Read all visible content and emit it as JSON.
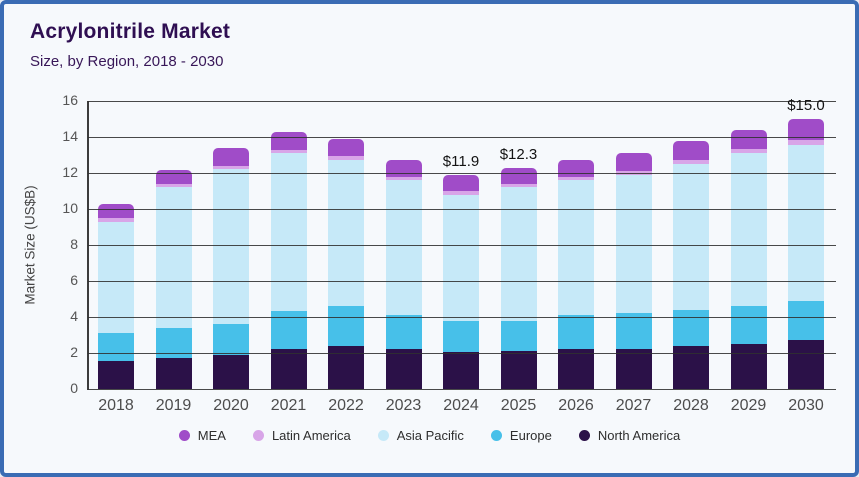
{
  "header": {
    "title": "Acrylonitrile Market",
    "subtitle": "Size, by Region, 2018 - 2030"
  },
  "colors": {
    "card_border": "#3a6cb4",
    "card_background": "#f6f9fc",
    "title_text": "#2f0f52",
    "axis_text": "#555555",
    "gridline": "#303030",
    "data_label_text": "#131313",
    "mea": "#a04cc8",
    "latin_america": "#d8a5e8",
    "asia_pacific": "#c6e9f8",
    "europe": "#47c0e9",
    "north_america": "#2b1148"
  },
  "chart_data": {
    "type": "bar",
    "stacked": true,
    "title": "Acrylonitrile Market",
    "subtitle": "Size, by Region, 2018 - 2030",
    "xlabel": "",
    "ylabel": "Market Size (US$B)",
    "ylim": [
      0,
      16
    ],
    "yticks": [
      0,
      2,
      4,
      6,
      8,
      10,
      12,
      14,
      16
    ],
    "grid": "horizontal",
    "legend_position": "bottom",
    "categories": [
      "2018",
      "2019",
      "2020",
      "2021",
      "2022",
      "2023",
      "2024",
      "2025",
      "2026",
      "2027",
      "2028",
      "2029",
      "2030"
    ],
    "series": [
      {
        "name": "North America",
        "color": "#2b1148",
        "values": [
          1.55,
          1.7,
          1.9,
          2.25,
          2.4,
          2.25,
          2.05,
          2.1,
          2.2,
          2.25,
          2.4,
          2.5,
          2.7
        ]
      },
      {
        "name": "Europe",
        "color": "#47c0e9",
        "values": [
          1.55,
          1.7,
          1.7,
          2.1,
          2.2,
          1.85,
          1.75,
          1.7,
          1.9,
          2.0,
          2.0,
          2.1,
          2.2
        ]
      },
      {
        "name": "Asia Pacific",
        "color": "#c6e9f8",
        "values": [
          6.2,
          7.8,
          8.6,
          8.75,
          8.15,
          7.5,
          7.0,
          7.4,
          7.5,
          7.65,
          8.1,
          8.5,
          8.65
        ]
      },
      {
        "name": "Latin America",
        "color": "#d8a5e8",
        "values": [
          0.2,
          0.2,
          0.2,
          0.2,
          0.2,
          0.2,
          0.2,
          0.2,
          0.2,
          0.2,
          0.2,
          0.25,
          0.3
        ]
      },
      {
        "name": "MEA",
        "color": "#a04cc8",
        "values": [
          0.8,
          0.75,
          1.0,
          1.0,
          0.95,
          0.9,
          0.9,
          0.9,
          0.95,
          1.0,
          1.1,
          1.05,
          1.15
        ]
      }
    ],
    "stack_order_bottom_to_top": [
      "North America",
      "Europe",
      "Asia Pacific",
      "Latin America",
      "MEA"
    ],
    "legend_order": [
      "MEA",
      "Latin America",
      "Asia Pacific",
      "Europe",
      "North America"
    ],
    "totals": [
      10.3,
      12.15,
      13.4,
      14.3,
      13.9,
      12.7,
      11.9,
      12.3,
      12.75,
      13.1,
      13.8,
      14.4,
      15.0
    ],
    "data_labels": {
      "2024": "$11.9",
      "2025": "$12.3",
      "2030": "$15.0"
    }
  }
}
